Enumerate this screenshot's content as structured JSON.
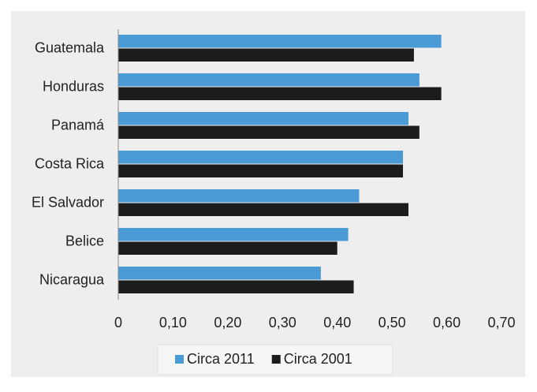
{
  "chart_data": {
    "type": "bar",
    "orientation": "horizontal",
    "categories": [
      "Guatemala",
      "Honduras",
      "Panamá",
      "Costa Rica",
      "El Salvador",
      "Belice",
      "Nicaragua"
    ],
    "series": [
      {
        "name": "Circa 2011",
        "color": "#4a9ad6",
        "values": [
          0.59,
          0.55,
          0.53,
          0.52,
          0.44,
          0.42,
          0.37
        ]
      },
      {
        "name": "Circa 2001",
        "color": "#1c1c1c",
        "values": [
          0.54,
          0.59,
          0.55,
          0.52,
          0.53,
          0.4,
          0.43
        ]
      }
    ],
    "xlim": [
      0,
      0.7
    ],
    "xticks": [
      0,
      {
        "value": 0.1,
        "label": "0,10"
      },
      {
        "value": 0.2,
        "label": "0,20"
      },
      {
        "value": 0.3,
        "label": "0,30"
      },
      {
        "value": 0.4,
        "label": "0,40"
      },
      {
        "value": 0.5,
        "label": "0,50"
      },
      {
        "value": 0.6,
        "label": "0,60"
      },
      {
        "value": 0.7,
        "label": "0,70"
      }
    ],
    "legend": "bottom",
    "grid": false
  }
}
